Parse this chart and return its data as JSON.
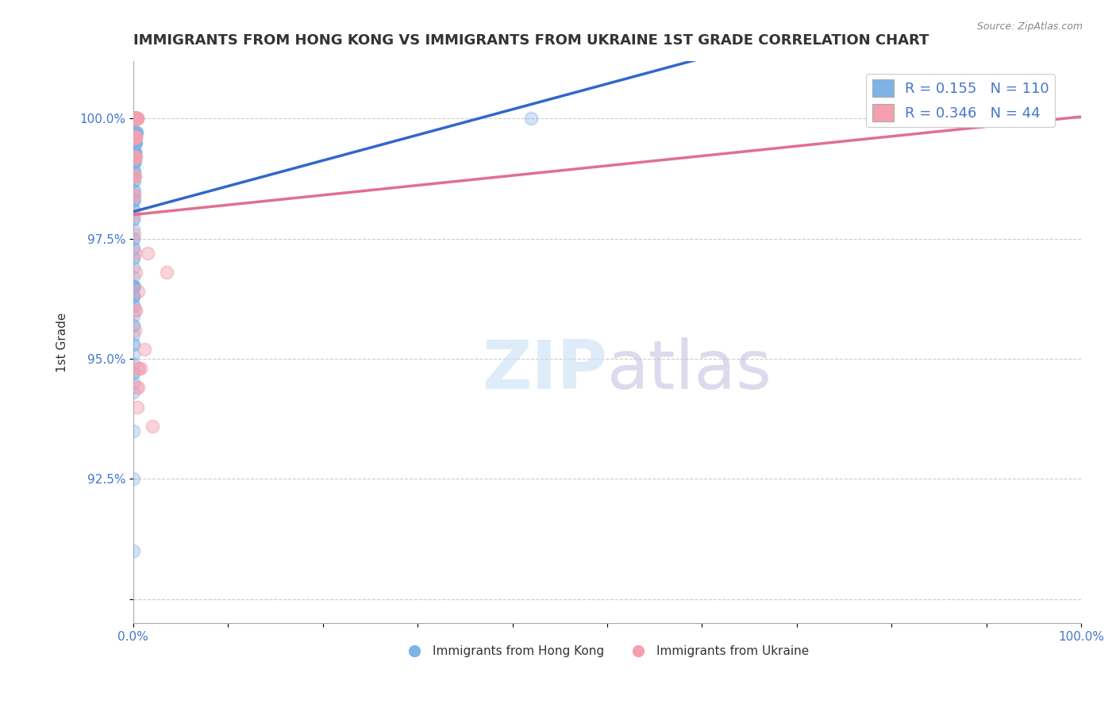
{
  "title": "IMMIGRANTS FROM HONG KONG VS IMMIGRANTS FROM UKRAINE 1ST GRADE CORRELATION CHART",
  "source": "Source: ZipAtlas.com",
  "ylabel": "1st Grade",
  "xlim": [
    0,
    100
  ],
  "ylim": [
    89.5,
    101.2
  ],
  "legend_hk_r": "0.155",
  "legend_hk_n": "110",
  "legend_uk_r": "0.346",
  "legend_uk_n": "44",
  "hk_color": "#7EB3E8",
  "uk_color": "#F4A0B0",
  "hk_line_color": "#3366CC",
  "uk_line_color": "#E07090",
  "background_color": "#FFFFFF",
  "hk_x": [
    0.05,
    0.08,
    0.1,
    0.12,
    0.15,
    0.18,
    0.2,
    0.22,
    0.25,
    0.28,
    0.3,
    0.32,
    0.35,
    0.38,
    0.4,
    0.05,
    0.07,
    0.09,
    0.11,
    0.13,
    0.16,
    0.19,
    0.21,
    0.24,
    0.27,
    0.29,
    0.31,
    0.34,
    0.06,
    0.08,
    0.1,
    0.14,
    0.17,
    0.2,
    0.23,
    0.26,
    0.05,
    0.07,
    0.09,
    0.12,
    0.15,
    0.18,
    0.21,
    0.05,
    0.08,
    0.1,
    0.13,
    0.16,
    0.05,
    0.07,
    0.09,
    0.05,
    0.06,
    0.05,
    0.06,
    0.04,
    0.05,
    0.06,
    0.04,
    0.05,
    0.04,
    0.05,
    0.04,
    0.04,
    0.05,
    0.04,
    0.03,
    0.03,
    0.04,
    0.03,
    0.03,
    42.0,
    0.03,
    0.02,
    0.03,
    0.04,
    0.05,
    0.06,
    0.02,
    0.03,
    0.04,
    0.05,
    0.02,
    0.03,
    0.02,
    0.02,
    0.03,
    0.02,
    0.02,
    0.03,
    0.02,
    0.02,
    0.01,
    0.02,
    0.01,
    0.01,
    0.01,
    0.01,
    0.01
  ],
  "hk_y": [
    100.0,
    100.0,
    100.0,
    100.0,
    100.0,
    100.0,
    100.0,
    100.0,
    100.0,
    100.0,
    100.0,
    100.0,
    100.0,
    100.0,
    100.0,
    99.7,
    99.7,
    99.7,
    99.7,
    99.7,
    99.7,
    99.7,
    99.7,
    99.7,
    99.7,
    99.7,
    99.7,
    99.7,
    99.5,
    99.5,
    99.5,
    99.5,
    99.5,
    99.5,
    99.5,
    99.5,
    99.3,
    99.3,
    99.3,
    99.3,
    99.3,
    99.3,
    99.3,
    99.1,
    99.1,
    99.1,
    99.1,
    99.1,
    98.9,
    98.9,
    98.9,
    98.7,
    98.7,
    98.5,
    98.5,
    98.3,
    98.3,
    98.3,
    98.1,
    98.1,
    97.9,
    97.9,
    97.7,
    97.5,
    97.5,
    97.3,
    97.3,
    97.1,
    97.1,
    96.9,
    96.7,
    100.0,
    96.5,
    96.5,
    96.5,
    96.5,
    96.5,
    96.5,
    96.3,
    96.3,
    96.3,
    96.3,
    96.1,
    96.1,
    95.9,
    95.7,
    95.7,
    95.5,
    95.3,
    95.3,
    95.1,
    94.9,
    94.7,
    94.7,
    94.5,
    94.3,
    93.5,
    92.5,
    91.0
  ],
  "uk_x": [
    0.08,
    0.12,
    0.16,
    0.2,
    0.24,
    0.28,
    0.32,
    0.36,
    0.4,
    0.44,
    0.06,
    0.1,
    0.14,
    0.18,
    0.22,
    0.26,
    0.3,
    0.07,
    0.11,
    0.15,
    0.19,
    0.23,
    0.08,
    0.12,
    0.16,
    0.09,
    0.13,
    0.1,
    0.08,
    0.2,
    1.5,
    0.3,
    3.5,
    0.5,
    0.15,
    0.25,
    0.18,
    1.2,
    85.0,
    0.4,
    0.6,
    0.8,
    0.35,
    0.55,
    0.45,
    2.0
  ],
  "uk_y": [
    100.0,
    100.0,
    100.0,
    100.0,
    100.0,
    100.0,
    100.0,
    100.0,
    100.0,
    100.0,
    99.6,
    99.6,
    99.6,
    99.6,
    99.6,
    99.6,
    99.6,
    99.2,
    99.2,
    99.2,
    99.2,
    99.2,
    98.8,
    98.8,
    98.8,
    98.4,
    98.4,
    98.0,
    97.6,
    97.2,
    97.2,
    96.8,
    96.8,
    96.4,
    96.0,
    96.0,
    95.6,
    95.2,
    100.0,
    94.8,
    94.8,
    94.8,
    94.4,
    94.4,
    94.0,
    93.6
  ]
}
